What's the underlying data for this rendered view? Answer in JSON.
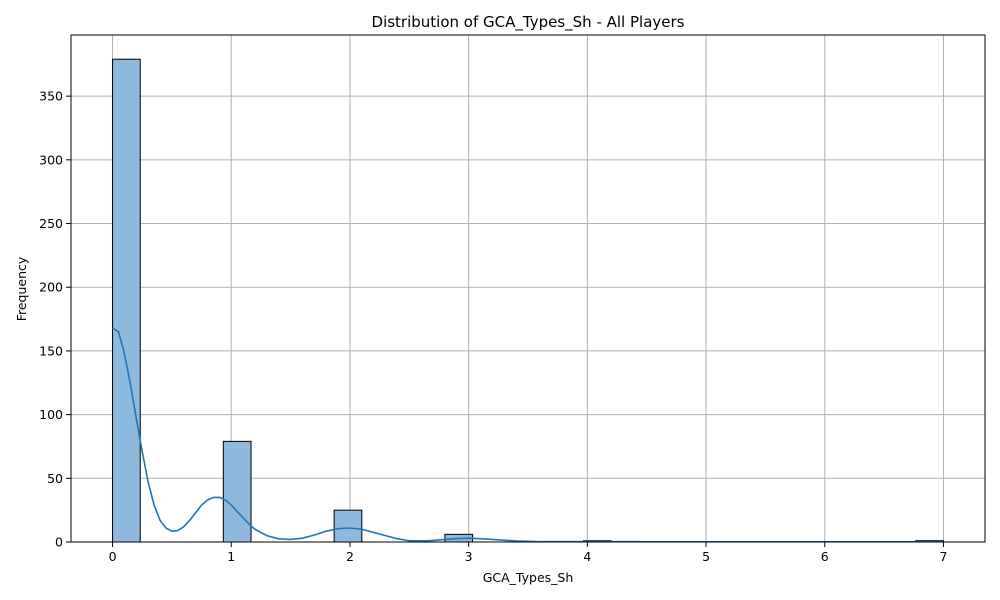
{
  "chart_data": {
    "type": "bar",
    "subtype": "histogram-with-kde",
    "title": "Distribution of GCA_Types_Sh - All Players",
    "xlabel": "GCA_Types_Sh",
    "ylabel": "Frequency",
    "xlim": [
      -0.35,
      7.35
    ],
    "ylim": [
      0,
      398
    ],
    "x_ticks": [
      "0",
      "1",
      "2",
      "3",
      "4",
      "5",
      "6",
      "7"
    ],
    "y_ticks": [
      "0",
      "50",
      "100",
      "150",
      "200",
      "250",
      "300",
      "350"
    ],
    "grid": true,
    "bins": [
      {
        "start": 0.0,
        "end": 0.2333,
        "count": 379
      },
      {
        "start": 0.9333,
        "end": 1.1667,
        "count": 79
      },
      {
        "start": 1.8667,
        "end": 2.1,
        "count": 25
      },
      {
        "start": 2.8,
        "end": 3.0333,
        "count": 6
      },
      {
        "start": 3.9667,
        "end": 4.2,
        "count": 1
      },
      {
        "start": 6.7667,
        "end": 7.0,
        "count": 1
      }
    ],
    "kde": {
      "x": [
        0,
        0.05,
        0.1,
        0.15,
        0.2,
        0.25,
        0.3,
        0.35,
        0.4,
        0.45,
        0.5,
        0.55,
        0.6,
        0.65,
        0.7,
        0.75,
        0.8,
        0.85,
        0.9,
        0.95,
        1.0,
        1.05,
        1.1,
        1.15,
        1.2,
        1.3,
        1.4,
        1.5,
        1.6,
        1.7,
        1.8,
        1.9,
        2.0,
        2.1,
        2.2,
        2.3,
        2.4,
        2.5,
        2.6,
        2.7,
        2.8,
        2.9,
        3.0,
        3.1,
        3.2,
        3.4,
        3.6,
        3.8,
        4.0,
        4.5,
        5.0,
        5.5,
        6.0,
        6.5,
        7.0
      ],
      "y": [
        168,
        165,
        148,
        124,
        97,
        71,
        47,
        29,
        17,
        11,
        8.5,
        9,
        12,
        17,
        23,
        29,
        33,
        35,
        35,
        33,
        29,
        24,
        19,
        14,
        10,
        5,
        2.5,
        2,
        3,
        5.5,
        8.5,
        10.5,
        11,
        10,
        7.5,
        5,
        2.5,
        1,
        0.8,
        1.2,
        2,
        2.7,
        3,
        2.6,
        2,
        0.8,
        0.3,
        0.3,
        0.3,
        0.2,
        0.2,
        0.2,
        0.2,
        0.2,
        0.2
      ]
    },
    "colors": {
      "bar_fill": "#8fb9dc",
      "bar_edge": "#000000",
      "kde_line": "#1f77b4",
      "grid": "#b0b0b0"
    }
  }
}
